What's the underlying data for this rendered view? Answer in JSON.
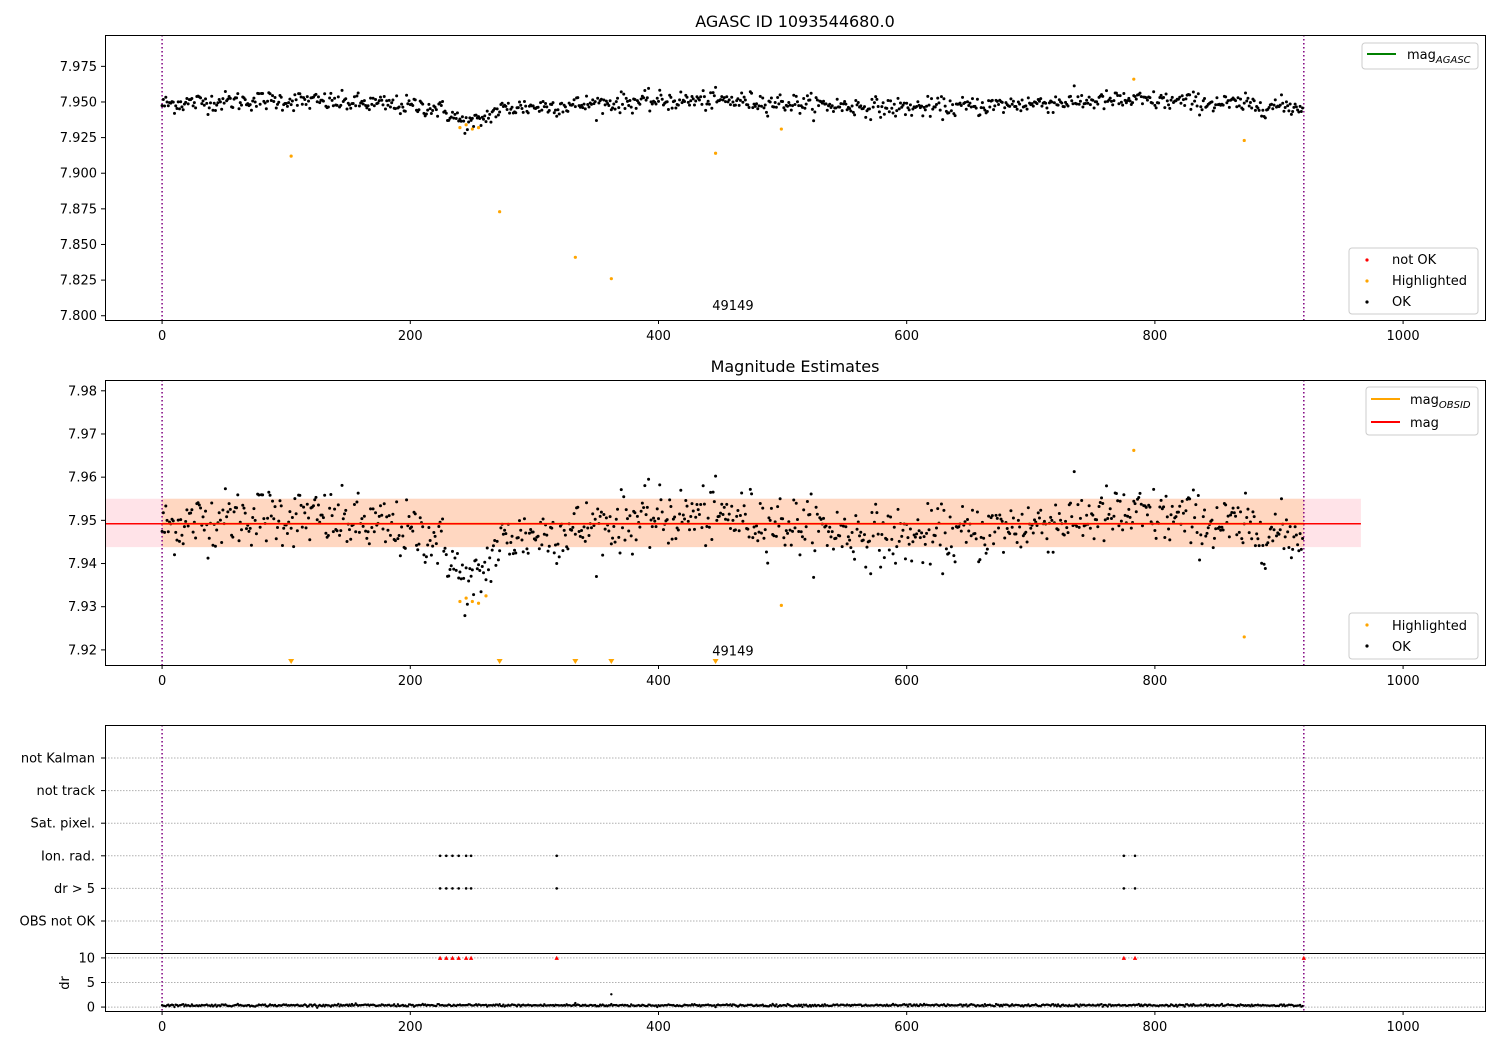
{
  "chart_data": [
    {
      "type": "scatter",
      "title": "AGASC ID 1093544680.0",
      "xlabel": "",
      "ylabel": "",
      "xlim": [
        -46,
        1066
      ],
      "ylim": [
        7.797,
        7.997
      ],
      "xticks": [
        0,
        200,
        400,
        600,
        800,
        1000
      ],
      "yticks": [
        7.8,
        7.825,
        7.85,
        7.875,
        7.9,
        7.925,
        7.95,
        7.975
      ],
      "ytick_labels": [
        "7.800",
        "7.825",
        "7.850",
        "7.875",
        "7.900",
        "7.925",
        "7.950",
        "7.975"
      ],
      "vlines": [
        0,
        920
      ],
      "annotation": {
        "text": "49149",
        "x": 460,
        "y": 7.804
      },
      "lines": [
        {
          "name": "mag$_{AGASC}$",
          "label_main": "mag",
          "label_sub": "AGASC",
          "color": "#008000"
        }
      ],
      "legend_markers": [
        "not OK",
        "Highlighted",
        "OK"
      ],
      "ok_series": {
        "name": "OK",
        "color": "#000000",
        "n": 920,
        "base": 7.9485,
        "noise": 0.0042,
        "dip_center": 248,
        "dip_depth": 0.011,
        "dip_width": 18
      },
      "highlighted": {
        "name": "Highlighted",
        "color": "#ffa500",
        "points": [
          [
            104,
            7.912
          ],
          [
            240,
            7.932
          ],
          [
            245,
            7.934
          ],
          [
            250,
            7.931
          ],
          [
            255,
            7.932
          ],
          [
            272,
            7.873
          ],
          [
            333,
            7.841
          ],
          [
            362,
            7.826
          ],
          [
            446,
            7.914
          ],
          [
            499,
            7.931
          ],
          [
            783,
            7.966
          ],
          [
            872,
            7.923
          ]
        ]
      },
      "not_ok": {
        "name": "not OK",
        "color": "#ff0000",
        "points": []
      }
    },
    {
      "type": "scatter",
      "title": "Magnitude Estimates",
      "xlabel": "",
      "ylabel": "",
      "xlim": [
        -46,
        1066
      ],
      "ylim": [
        7.9165,
        7.9825
      ],
      "xticks": [
        0,
        200,
        400,
        600,
        800,
        1000
      ],
      "yticks": [
        7.92,
        7.93,
        7.94,
        7.95,
        7.96,
        7.97,
        7.98
      ],
      "ytick_labels": [
        "7.92",
        "7.93",
        "7.94",
        "7.95",
        "7.96",
        "7.97",
        "7.98"
      ],
      "vlines": [
        0,
        920
      ],
      "annotation": {
        "text": "49149",
        "x": 460,
        "y": 7.9187
      },
      "lines": [
        {
          "name": "mag$_{OBSID}$",
          "label_main": "mag",
          "label_sub": "OBSID",
          "color": "#ffa500",
          "value": 7.9492,
          "x0": 0,
          "x1": 920
        },
        {
          "name": "mag",
          "label_main": "mag",
          "label_sub": "",
          "color": "#ff0000",
          "value": 7.9492,
          "x0": -46,
          "x1": 966
        }
      ],
      "bands": [
        {
          "color": "#ffc0cb",
          "y0": 7.9438,
          "y1": 7.955,
          "x0": -46,
          "x1": 966
        },
        {
          "color": "#ffcc99",
          "y0": 7.9438,
          "y1": 7.955,
          "x0": 0,
          "x1": 920
        }
      ],
      "legend_markers": [
        "Highlighted",
        "OK"
      ],
      "ok_series": {
        "name": "OK",
        "color": "#000000",
        "n": 920,
        "base": 7.9485,
        "noise": 0.0042,
        "dip_center": 248,
        "dip_depth": 0.011,
        "dip_width": 18
      },
      "highlighted": {
        "name": "Highlighted",
        "color": "#ffa500",
        "points": [
          [
            240,
            7.9312
          ],
          [
            245,
            7.932
          ],
          [
            250,
            7.9312
          ],
          [
            255,
            7.9308
          ],
          [
            261,
            7.9325
          ],
          [
            499,
            7.9303
          ],
          [
            783,
            7.9662
          ],
          [
            872,
            7.923
          ]
        ]
      },
      "offscale_markers": {
        "color": "#ffa500",
        "x": [
          104,
          272,
          333,
          362,
          446
        ]
      }
    },
    {
      "type": "scatter",
      "title": "",
      "xlabel": "",
      "ylabel": "",
      "xlim": [
        -46,
        1066
      ],
      "xticks": [
        0,
        200,
        400,
        600,
        800,
        1000
      ],
      "vlines": [
        0,
        920
      ],
      "categories": [
        "not Kalman",
        "not track",
        "Sat. pixel.",
        "Ion. rad.",
        "dr > 5",
        "OBS not OK"
      ],
      "flag_points": {
        "Ion. rad.": [
          224,
          229,
          234,
          239,
          245,
          249,
          318,
          775,
          784
        ],
        "dr > 5": [
          224,
          229,
          234,
          239,
          245,
          249,
          318,
          775,
          784
        ]
      }
    },
    {
      "type": "scatter",
      "title": "",
      "xlabel": "",
      "ylabel": "dr",
      "xlim": [
        -46,
        1066
      ],
      "ylim": [
        -0.8,
        11
      ],
      "xticks": [
        0,
        200,
        400,
        600,
        800,
        1000
      ],
      "yticks": [
        0,
        5,
        10
      ],
      "vlines": [
        0,
        920
      ],
      "clipped_markers": {
        "color": "#ff0000",
        "y": 10,
        "x": [
          224,
          229,
          234,
          239,
          245,
          249,
          318,
          775,
          784,
          920
        ]
      },
      "ok_series": {
        "color": "#000000",
        "n": 920,
        "base": 0.35,
        "noise": 0.12
      },
      "extra_points": [
        [
          362,
          2.6
        ],
        [
          333,
          0.8
        ]
      ]
    }
  ]
}
